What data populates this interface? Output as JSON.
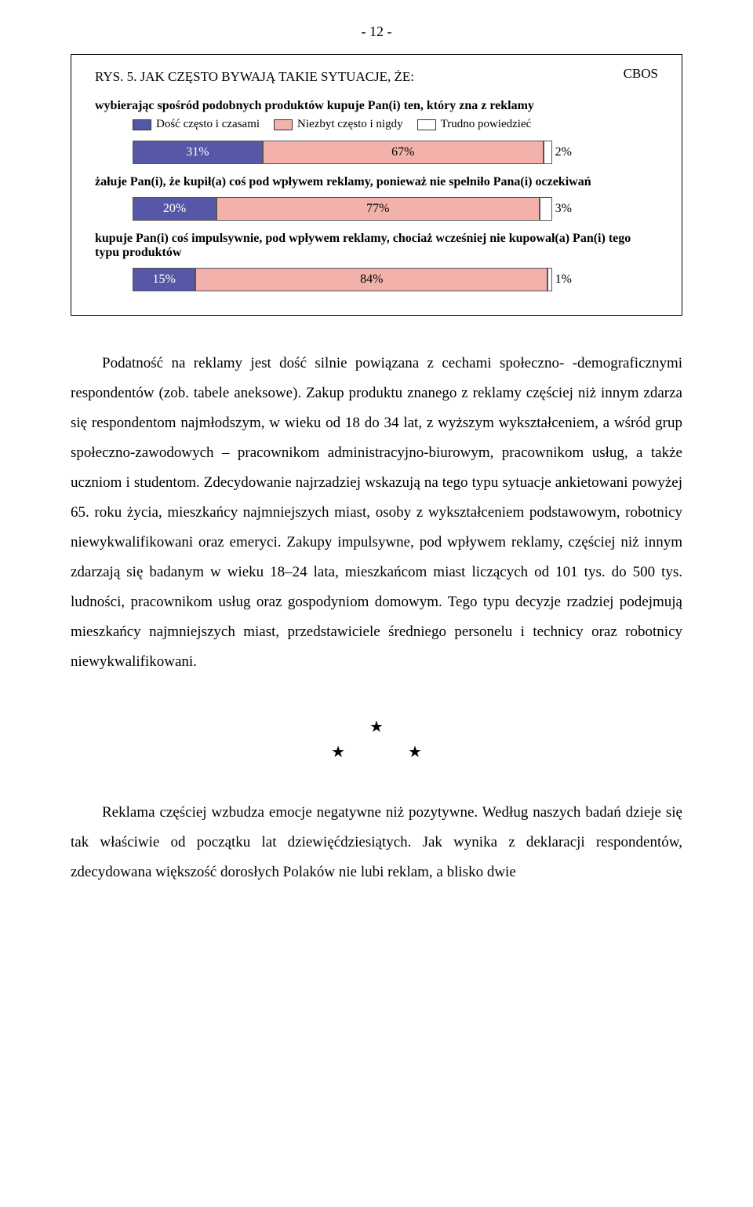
{
  "page_number": "- 12 -",
  "chart": {
    "cbos_label": "CBOS",
    "title": "RYS. 5. JAK CZĘSTO BYWAJĄ TAKIE SYTUACJE, ŻE:",
    "legend": [
      {
        "label": "Dość często i czasami",
        "color": "#5757a7"
      },
      {
        "label": "Niezbyt często i nigdy",
        "color": "#f3b1ab"
      },
      {
        "label": "Trudno powiedzieć",
        "color": "#ffffff"
      }
    ],
    "groups": [
      {
        "subtitle": "wybierając spośród podobnych produktów kupuje Pan(i) ten, który zna z reklamy",
        "segments": [
          {
            "value_label": "31%",
            "width_pct": 31,
            "color": "#5757a7",
            "text_color": "#ffffff"
          },
          {
            "value_label": "67%",
            "width_pct": 67,
            "color": "#f3b1ab",
            "text_color": "#000000"
          },
          {
            "value_label": "2%",
            "width_pct": 2,
            "color": "#ffffff",
            "text_color": "#000000",
            "label_outside": true
          }
        ]
      },
      {
        "subtitle": "żałuje Pan(i), że kupił(a) coś pod wpływem reklamy, ponieważ nie spełniło Pana(i) oczekiwań",
        "segments": [
          {
            "value_label": "20%",
            "width_pct": 20,
            "color": "#5757a7",
            "text_color": "#ffffff"
          },
          {
            "value_label": "77%",
            "width_pct": 77,
            "color": "#f3b1ab",
            "text_color": "#000000"
          },
          {
            "value_label": "3%",
            "width_pct": 3,
            "color": "#ffffff",
            "text_color": "#000000",
            "label_outside": true
          }
        ]
      },
      {
        "subtitle": "kupuje Pan(i) coś impulsywnie, pod wpływem reklamy, chociaż wcześniej nie kupował(a) Pan(i) tego typu produktów",
        "segments": [
          {
            "value_label": "15%",
            "width_pct": 15,
            "color": "#5757a7",
            "text_color": "#ffffff"
          },
          {
            "value_label": "84%",
            "width_pct": 84,
            "color": "#f3b1ab",
            "text_color": "#000000"
          },
          {
            "value_label": "1%",
            "width_pct": 1,
            "color": "#ffffff",
            "text_color": "#000000",
            "label_outside": true
          }
        ]
      }
    ],
    "seg_border_color": "#555555"
  },
  "paragraphs": {
    "p1": "Podatność na reklamy jest dość silnie powiązana z cechami społeczno- -demograficznymi respondentów (zob. tabele aneksowe). Zakup produktu znanego z reklamy częściej niż innym zdarza się respondentom najmłodszym, w wieku od 18 do 34 lat, z wyższym wykształceniem, a wśród grup społeczno-zawodowych – pracownikom administracyjno-biurowym, pracownikom usług, a także uczniom i studentom. Zdecydowanie najrzadziej wskazują na tego typu sytuacje ankietowani powyżej 65. roku życia, mieszkańcy najmniejszych miast, osoby z wykształceniem podstawowym, robotnicy niewykwalifikowani oraz emeryci. Zakupy impulsywne, pod wpływem reklamy, częściej niż innym zdarzają się badanym w wieku 18–24 lata, mieszkańcom miast liczących od 101 tys. do 500 tys. ludności, pracownikom usług oraz gospodyniom domowym. Tego typu decyzje rzadziej podejmują mieszkańcy najmniejszych miast, przedstawiciele średniego personelu i technicy oraz robotnicy niewykwalifikowani.",
    "p2": "Reklama częściej wzbudza emocje negatywne niż pozytywne. Według naszych badań dzieje się tak właściwie od początku lat dziewięćdziesiątych. Jak wynika z deklaracji respondentów, zdecydowana większość dorosłych Polaków nie lubi reklam, a blisko dwie"
  },
  "stars": {
    "top": "★",
    "bottom": "★    ★"
  }
}
